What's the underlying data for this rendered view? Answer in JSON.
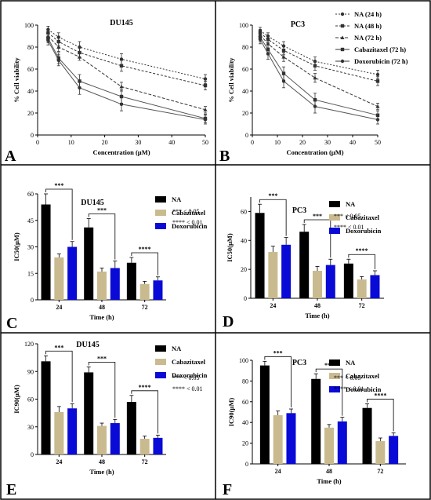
{
  "chart_data": [
    {
      "panel": "A",
      "type": "line",
      "title": "DU145",
      "xlabel": "Concentration (µM)",
      "ylabel": "% Cell viability",
      "x": [
        3.125,
        6.25,
        12.5,
        25,
        50
      ],
      "xticks": [
        "0",
        "10",
        "20",
        "30",
        "40",
        "50"
      ],
      "yticks": [
        "0",
        "20",
        "40",
        "60",
        "80",
        "100"
      ],
      "xlim": [
        0,
        50
      ],
      "ylim": [
        0,
        100
      ],
      "series": [
        {
          "name": "NA (24 h)",
          "values": [
            96,
            89,
            80,
            69,
            51
          ],
          "errors": [
            3,
            4,
            5,
            5,
            4
          ]
        },
        {
          "name": "NA (48 h)",
          "values": [
            93,
            85,
            75,
            63,
            45
          ],
          "errors": [
            3,
            4,
            4,
            5,
            4
          ]
        },
        {
          "name": "NA (72 h)",
          "values": [
            90,
            80,
            71,
            44,
            23
          ],
          "errors": [
            3,
            4,
            3,
            4,
            3
          ]
        },
        {
          "name": "Cabazitaxel (72 h)",
          "values": [
            88,
            70,
            49,
            35,
            15
          ],
          "errors": [
            4,
            5,
            6,
            6,
            4
          ]
        },
        {
          "name": "Doxorubicin (72 h)",
          "values": [
            86,
            68,
            43,
            28,
            14
          ],
          "errors": [
            4,
            5,
            6,
            6,
            4
          ]
        }
      ]
    },
    {
      "panel": "B",
      "type": "line",
      "title": "PC3",
      "xlabel": "Concentration (µM)",
      "ylabel": "% Cell viability",
      "x": [
        3.125,
        6.25,
        12.5,
        25,
        50
      ],
      "xticks": [
        "0",
        "10",
        "20",
        "30",
        "40",
        "50"
      ],
      "yticks": [
        "0",
        "20",
        "40",
        "60",
        "80",
        "100"
      ],
      "xlim": [
        0,
        50
      ],
      "ylim": [
        0,
        100
      ],
      "legend": [
        "NA (24 h)",
        "NA (48 h)",
        "NA (72 h)",
        "Cabazitaxel (72 h)",
        "Doxorubicin (72 h)"
      ],
      "series": [
        {
          "name": "NA (24 h)",
          "values": [
            95,
            90,
            81,
            67,
            55
          ],
          "errors": [
            3,
            3,
            4,
            4,
            4
          ]
        },
        {
          "name": "NA (48 h)",
          "values": [
            93,
            87,
            77,
            63,
            49
          ],
          "errors": [
            3,
            3,
            4,
            4,
            4
          ]
        },
        {
          "name": "NA (72 h)",
          "values": [
            91,
            83,
            71,
            52,
            26
          ],
          "errors": [
            3,
            4,
            4,
            4,
            3
          ]
        },
        {
          "name": "Cabazitaxel (72 h)",
          "values": [
            89,
            78,
            56,
            32,
            18
          ],
          "errors": [
            4,
            5,
            6,
            6,
            4
          ]
        },
        {
          "name": "Doxorubicin (72 h)",
          "values": [
            87,
            74,
            49,
            26,
            14
          ],
          "errors": [
            4,
            5,
            6,
            6,
            4
          ]
        }
      ]
    },
    {
      "panel": "C",
      "type": "bar",
      "title": "DU145",
      "xlabel": "Time (h)",
      "ylabel": "IC50(µM)",
      "categories": [
        "24",
        "48",
        "72"
      ],
      "yticks": [
        "0",
        "15",
        "30",
        "45",
        "60"
      ],
      "ylim": [
        0,
        60
      ],
      "series": [
        {
          "name": "NA",
          "values": [
            54,
            41,
            21
          ],
          "errors": [
            6,
            5,
            3
          ]
        },
        {
          "name": "Cabazitaxel",
          "values": [
            24,
            16,
            9
          ],
          "errors": [
            2,
            2,
            1.5
          ]
        },
        {
          "name": "Doxorubicin",
          "values": [
            30,
            18,
            11
          ],
          "errors": [
            3,
            4,
            2
          ]
        }
      ],
      "significance": [
        "***",
        "***",
        "****"
      ],
      "notes": [
        "*** < 0.05",
        "**** < 0.01"
      ]
    },
    {
      "panel": "D",
      "type": "bar",
      "title": "PC3",
      "xlabel": "Time (h)",
      "ylabel": "IC50(µM)",
      "categories": [
        "24",
        "48",
        "72"
      ],
      "yticks": [
        "0",
        "20",
        "40",
        "60"
      ],
      "ylim": [
        0,
        70
      ],
      "series": [
        {
          "name": "NA",
          "values": [
            59,
            46,
            24
          ],
          "errors": [
            6,
            5,
            3
          ]
        },
        {
          "name": "Cabazitaxel",
          "values": [
            32,
            19,
            13
          ],
          "errors": [
            4,
            3,
            2
          ]
        },
        {
          "name": "Doxorubicin",
          "values": [
            37,
            23,
            16
          ],
          "errors": [
            5,
            4,
            3
          ]
        }
      ],
      "significance": [
        "***",
        "***",
        "****"
      ],
      "notes": [
        "*** < 0.05",
        "**** < 0.01"
      ]
    },
    {
      "panel": "E",
      "type": "bar",
      "title": "DU145",
      "xlabel": "Time (h)",
      "ylabel": "IC90(µM)",
      "categories": [
        "24",
        "48",
        "72"
      ],
      "yticks": [
        "0",
        "30",
        "60",
        "90",
        "120"
      ],
      "ylim": [
        0,
        120
      ],
      "series": [
        {
          "name": "NA",
          "values": [
            101,
            89,
            57
          ],
          "errors": [
            6,
            6,
            7
          ]
        },
        {
          "name": "Cabazitaxel",
          "values": [
            46,
            31,
            17
          ],
          "errors": [
            6,
            3,
            3
          ]
        },
        {
          "name": "Doxorubicin",
          "values": [
            50,
            34,
            18
          ],
          "errors": [
            5,
            4,
            3
          ]
        }
      ],
      "significance": [
        "***",
        "***",
        "****"
      ],
      "notes": [
        "*** < 0.05",
        "**** < 0.01"
      ]
    },
    {
      "panel": "F",
      "type": "bar",
      "title": "PC3",
      "xlabel": "Time (h)",
      "ylabel": "IC90(µM)",
      "categories": [
        "24",
        "48",
        "72"
      ],
      "yticks": [
        "0",
        "20",
        "40",
        "60",
        "80",
        "100"
      ],
      "ylim": [
        0,
        100
      ],
      "series": [
        {
          "name": "NA",
          "values": [
            95,
            82,
            54
          ],
          "errors": [
            4,
            5,
            4
          ]
        },
        {
          "name": "Cabazitaxel",
          "values": [
            47,
            35,
            22
          ],
          "errors": [
            4,
            3,
            3
          ]
        },
        {
          "name": "Doxorubicin",
          "values": [
            49,
            41,
            27
          ],
          "errors": [
            4,
            4,
            3
          ]
        }
      ],
      "significance": [
        "***",
        "***",
        "****"
      ],
      "notes": [
        "*** < 0.05",
        "**** < 0.01"
      ]
    }
  ],
  "colors": {
    "NA": "#000000",
    "Cabazitaxel": "#c9bb8f",
    "Doxorubicin": "#0a0ad6",
    "line": "#555555"
  }
}
